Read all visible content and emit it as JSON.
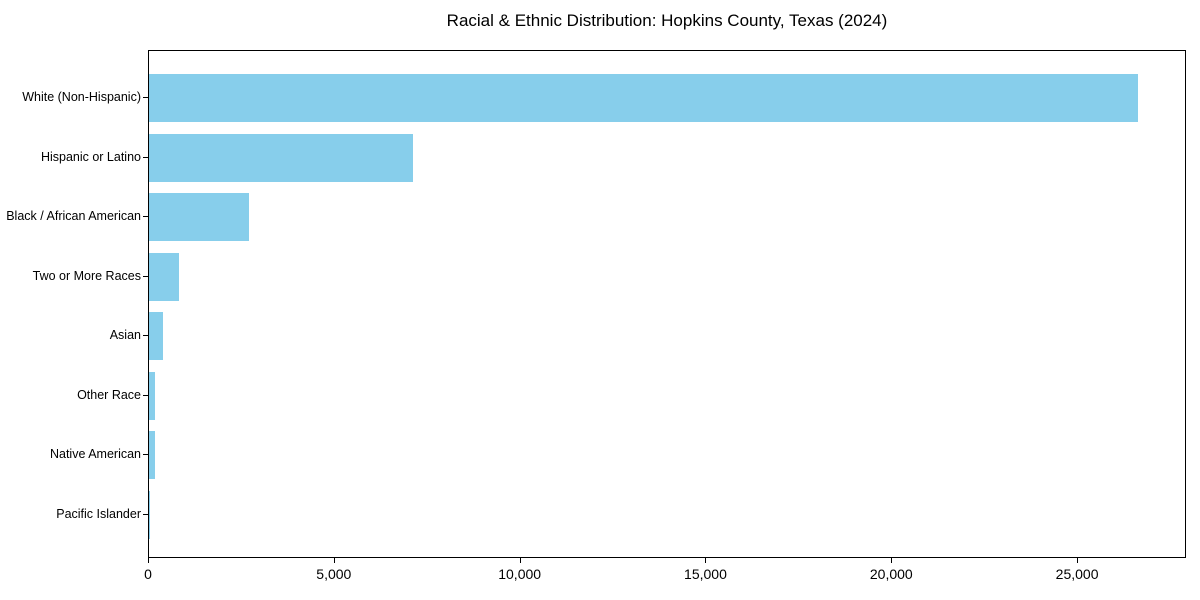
{
  "title": "Racial & Ethnic Distribution: Hopkins County, Texas (2024)",
  "chart_data": {
    "type": "bar",
    "orientation": "horizontal",
    "title": "Racial & Ethnic Distribution: Hopkins County, Texas (2024)",
    "xlabel": "",
    "ylabel": "",
    "categories": [
      "White (Non-Hispanic)",
      "Hispanic or Latino",
      "Black / African American",
      "Two or More Races",
      "Asian",
      "Other Race",
      "Native American",
      "Pacific Islander"
    ],
    "values": [
      26600,
      7100,
      2680,
      810,
      380,
      170,
      160,
      25
    ],
    "xlim": [
      0,
      27930
    ],
    "xticks": [
      0,
      5000,
      10000,
      15000,
      20000,
      25000
    ],
    "xtick_labels": [
      "0",
      "5,000",
      "10,000",
      "15,000",
      "20,000",
      "25,000"
    ],
    "bar_color": "#87CEEB",
    "spine_color": "#000000",
    "grid": false,
    "legend": null
  }
}
